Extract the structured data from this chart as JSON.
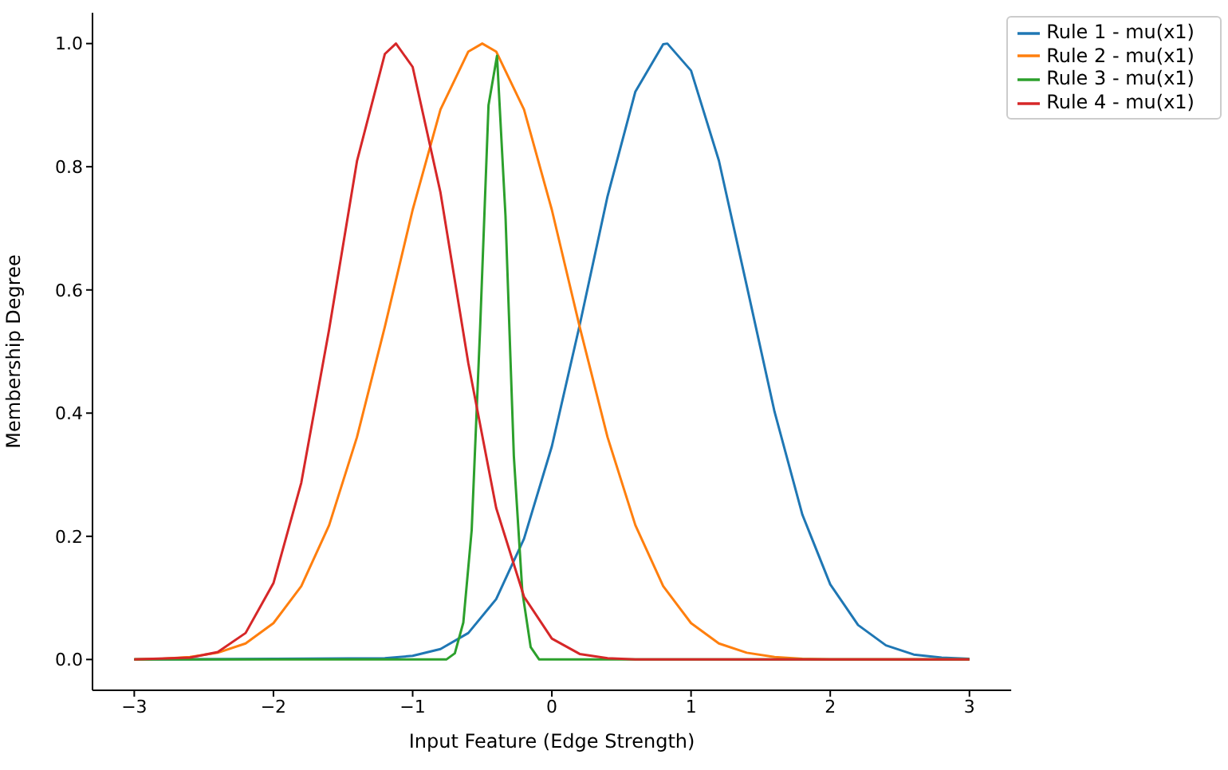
{
  "chart_data": {
    "type": "line",
    "xlabel": "Input Feature (Edge Strength)",
    "ylabel": "Membership Degree",
    "xlim": [
      -3.3,
      3.3
    ],
    "xticks": [
      {
        "value": -3,
        "label": "−3"
      },
      {
        "value": -2,
        "label": "−2"
      },
      {
        "value": -1,
        "label": "−1"
      },
      0,
      1,
      2,
      3
    ],
    "ylim": [
      -0.05,
      1.05
    ],
    "yticks": [
      {
        "value": 0,
        "label": "0.0"
      },
      {
        "value": 0.2,
        "label": "0.2"
      },
      {
        "value": 0.4,
        "label": "0.4"
      },
      {
        "value": 0.6,
        "label": "0.6"
      },
      {
        "value": 0.8,
        "label": "0.8"
      },
      {
        "value": 1,
        "label": "1.0"
      }
    ],
    "grid": false,
    "legend": "top right",
    "marker": "none",
    "line_style": "solid",
    "series": [
      {
        "name": "Rule 1 - mu(x1)",
        "color": "#1f77b4",
        "x": [
          -3,
          -1.2,
          -1,
          -0.8,
          -0.6,
          -0.4,
          -0.2,
          0,
          0.2,
          0.4,
          0.6,
          0.8,
          0.83,
          1,
          1.2,
          1.4,
          1.6,
          1.8,
          2,
          2.2,
          2.4,
          2.6,
          2.8,
          3
        ],
        "values": [
          0,
          0.002,
          0.006,
          0.017,
          0.043,
          0.098,
          0.196,
          0.346,
          0.543,
          0.752,
          0.922,
          0.999,
          1,
          0.956,
          0.81,
          0.607,
          0.402,
          0.235,
          0.122,
          0.056,
          0.023,
          0.008,
          0.003,
          0.001
        ]
      },
      {
        "name": "Rule 2 - mu(x1)",
        "color": "#ff7f0e",
        "x": [
          -3,
          -2.8,
          -2.6,
          -2.4,
          -2.2,
          -2,
          -1.8,
          -1.6,
          -1.4,
          -1.2,
          -1,
          -0.8,
          -0.6,
          -0.5,
          -0.4,
          -0.2,
          0,
          0.2,
          0.4,
          0.6,
          0.8,
          1,
          1.2,
          1.4,
          1.6,
          1.8,
          2,
          3
        ],
        "values": [
          0,
          0.001,
          0.004,
          0.011,
          0.026,
          0.059,
          0.119,
          0.218,
          0.361,
          0.54,
          0.73,
          0.893,
          0.987,
          1,
          0.987,
          0.893,
          0.73,
          0.54,
          0.361,
          0.218,
          0.119,
          0.059,
          0.026,
          0.011,
          0.004,
          0.001,
          0,
          0
        ]
      },
      {
        "name": "Rule 3 - mu(x1)",
        "color": "#2ca02c",
        "x": [
          -3,
          -0.758,
          -0.697,
          -0.636,
          -0.576,
          -0.515,
          -0.455,
          -0.394,
          -0.333,
          -0.273,
          -0.212,
          -0.152,
          -0.091,
          3
        ],
        "values": [
          0,
          0,
          0.01,
          0.06,
          0.21,
          0.54,
          0.9,
          0.98,
          0.72,
          0.33,
          0.11,
          0.02,
          0,
          0
        ]
      },
      {
        "name": "Rule 4 - mu(x1)",
        "color": "#d62728",
        "x": [
          -3,
          -2.6,
          -2.4,
          -2.2,
          -2,
          -1.8,
          -1.6,
          -1.4,
          -1.2,
          -1.12,
          -1,
          -0.8,
          -0.6,
          -0.4,
          -0.2,
          0,
          0.2,
          0.4,
          0.6,
          3
        ],
        "values": [
          0,
          0.003,
          0.012,
          0.043,
          0.124,
          0.287,
          0.536,
          0.809,
          0.983,
          1,
          0.962,
          0.758,
          0.481,
          0.246,
          0.102,
          0.034,
          0.009,
          0.002,
          0,
          0
        ]
      }
    ]
  }
}
